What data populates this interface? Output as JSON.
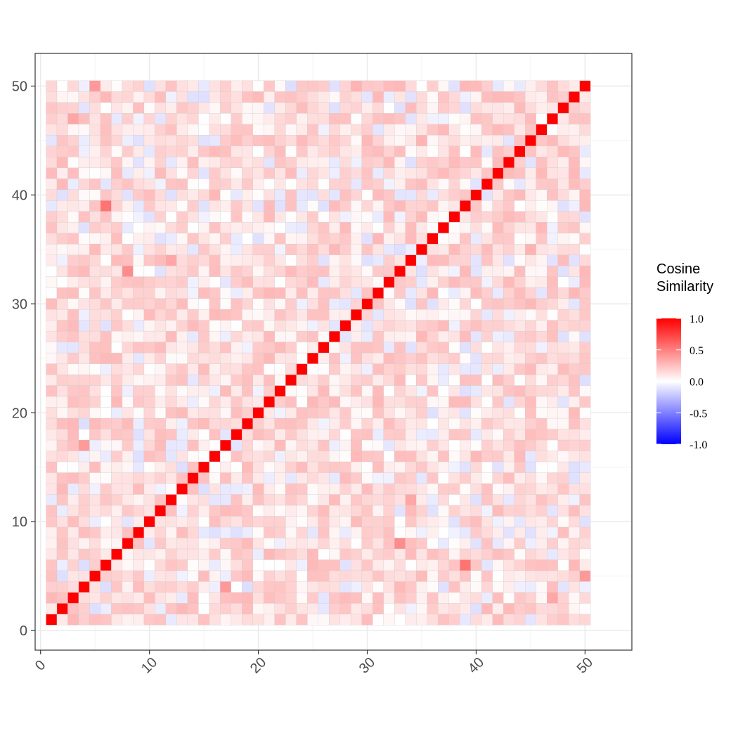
{
  "chart_data": {
    "type": "heatmap",
    "title": "",
    "xlabel": "",
    "ylabel": "",
    "n": 50,
    "xlim": [
      -0.5,
      54.3
    ],
    "ylim": [
      -1.8,
      53.0
    ],
    "x_ticks": [
      0,
      10,
      20,
      30,
      40,
      50
    ],
    "y_ticks": [
      0,
      10,
      20,
      30,
      40,
      50
    ],
    "x_tick_labels": [
      "0",
      "10",
      "20",
      "30",
      "40",
      "50"
    ],
    "y_tick_labels": [
      "0",
      "10",
      "20",
      "30",
      "40",
      "50"
    ],
    "grid": true,
    "diagonal_value": 1.0,
    "highlight_cells": [
      {
        "x": 6,
        "y": 39,
        "value": 0.55
      },
      {
        "x": 39,
        "y": 6,
        "value": 0.55
      },
      {
        "x": 8,
        "y": 33,
        "value": 0.45
      },
      {
        "x": 33,
        "y": 8,
        "value": 0.45
      },
      {
        "x": 4,
        "y": 17,
        "value": 0.4
      },
      {
        "x": 17,
        "y": 4,
        "value": 0.4
      },
      {
        "x": 5,
        "y": 50,
        "value": 0.4
      },
      {
        "x": 50,
        "y": 5,
        "value": 0.4
      },
      {
        "x": 3,
        "y": 47,
        "value": 0.35
      },
      {
        "x": 47,
        "y": 3,
        "value": 0.35
      },
      {
        "x": 12,
        "y": 34,
        "value": 0.35
      },
      {
        "x": 34,
        "y": 12,
        "value": 0.35
      },
      {
        "x": 29,
        "y": 50,
        "value": 0.3
      },
      {
        "x": 35,
        "y": 45,
        "value": 0.3
      },
      {
        "x": 45,
        "y": 35,
        "value": 0.3
      }
    ],
    "legend": {
      "title_lines": [
        "Cosine",
        "Similarity"
      ],
      "placement": "right",
      "min": -1.0,
      "max": 1.0,
      "ticks": [
        "1.0",
        "0.5",
        "0.0",
        "-0.5",
        "-1.0"
      ],
      "colors": {
        "low": "#0000ff",
        "mid": "#ffffff",
        "high": "#ff0000"
      }
    }
  }
}
